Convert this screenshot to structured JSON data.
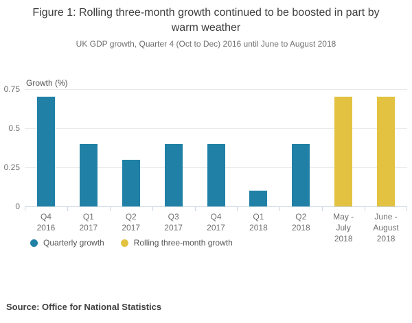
{
  "figure": {
    "title": "Figure 1: Rolling three-month growth continued to be boosted in part by warm weather",
    "subtitle": "UK GDP growth, Quarter 4 (Oct to Dec) 2016 until June to August 2018",
    "source": "Source: Office for National Statistics"
  },
  "chart_data": {
    "type": "bar",
    "title": "Figure 1: Rolling three-month growth continued to be boosted in part by warm weather",
    "subtitle": "UK GDP growth, Quarter 4 (Oct to Dec) 2016 until June to August 2018",
    "xlabel": "",
    "ylabel": "Growth (%)",
    "ylim": [
      0,
      0.75
    ],
    "yticks": [
      0,
      0.25,
      0.5,
      0.75
    ],
    "ytick_labels": [
      "0",
      "0.25",
      "0.5",
      "0.75"
    ],
    "grid": true,
    "legend_position": "bottom-left",
    "categories": [
      "Q4 2016",
      "Q1 2017",
      "Q2 2017",
      "Q3 2017",
      "Q4 2017",
      "Q1 2018",
      "Q2 2018",
      "May - July 2018",
      "June - August 2018"
    ],
    "category_label_lines": [
      [
        "Q4",
        "2016"
      ],
      [
        "Q1",
        "2017"
      ],
      [
        "Q2",
        "2017"
      ],
      [
        "Q3",
        "2017"
      ],
      [
        "Q4",
        "2017"
      ],
      [
        "Q1",
        "2018"
      ],
      [
        "Q2",
        "2018"
      ],
      [
        "May -",
        "July",
        "2018"
      ],
      [
        "June -",
        "August",
        "2018"
      ]
    ],
    "series": [
      {
        "name": "Quarterly growth",
        "color": "#2080A6",
        "values": [
          0.7,
          0.4,
          0.3,
          0.4,
          0.4,
          0.1,
          0.4,
          null,
          null
        ]
      },
      {
        "name": "Rolling three-month growth",
        "color": "#E2C240",
        "values": [
          null,
          null,
          null,
          null,
          null,
          null,
          null,
          0.7,
          0.7
        ]
      }
    ],
    "colors": {
      "axis_line": "#C9D6E3",
      "gridline": "#E9E9E9"
    }
  }
}
